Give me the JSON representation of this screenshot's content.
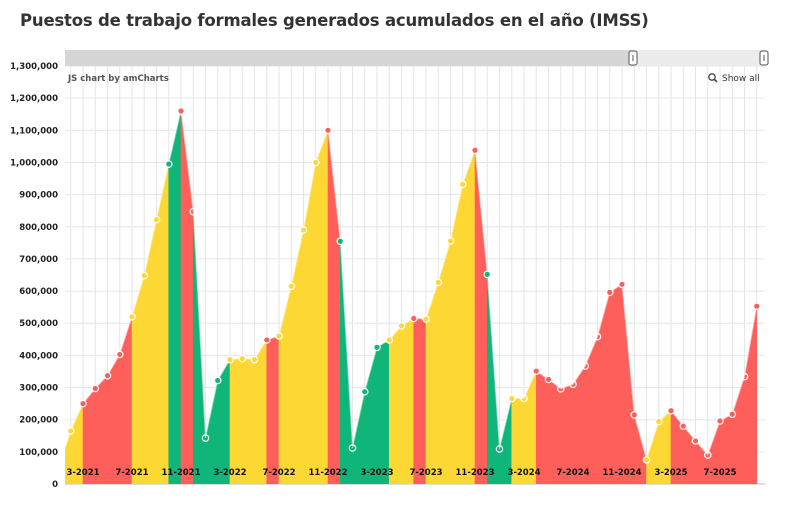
{
  "title": "Puestos de trabajo formales generados acumulados en el año (IMSS)",
  "credit": "JS chart by amCharts",
  "show_all_label": "Show all",
  "icons": {
    "show_all": "zoom-magnifier-icon",
    "scroll_grip": "grip-icon"
  },
  "colors": {
    "Y": "#fdd835",
    "R": "#fe5f5a",
    "G": "#10b57a",
    "grid": "#e6e6e6",
    "scrollbar": "#d6d6d6",
    "scrollbar_selected": "#ececec"
  },
  "chart_data": {
    "type": "area",
    "title": "Puestos de trabajo formales generados acumulados en el año (IMSS)",
    "xlabel": "",
    "ylabel": "",
    "ylim": [
      0,
      1300000
    ],
    "yticks": [
      "0",
      "100,000",
      "200,000",
      "300,000",
      "400,000",
      "500,000",
      "600,000",
      "700,000",
      "800,000",
      "900,000",
      "1,000,000",
      "1,100,000",
      "1,200,000",
      "1,300,000"
    ],
    "xticks": [
      "3-2021",
      "7-2021",
      "11-2021",
      "3-2022",
      "7-2022",
      "11-2022",
      "3-2023",
      "7-2023",
      "11-2023",
      "3-2024",
      "7-2024",
      "11-2024",
      "3-2025",
      "7-2025"
    ],
    "grid": true,
    "segment_color_note_keys": "Y=yellow, R=red, G=green",
    "points": [
      {
        "x": "1-2021",
        "y": 48000,
        "c": "Y"
      },
      {
        "x": "2-2021",
        "y": 165000,
        "c": "Y"
      },
      {
        "x": "3-2021",
        "y": 250000,
        "c": "R"
      },
      {
        "x": "4-2021",
        "y": 297000,
        "c": "R"
      },
      {
        "x": "5-2021",
        "y": 337000,
        "c": "R"
      },
      {
        "x": "6-2021",
        "y": 403000,
        "c": "R"
      },
      {
        "x": "7-2021",
        "y": 520000,
        "c": "Y"
      },
      {
        "x": "8-2021",
        "y": 648000,
        "c": "Y"
      },
      {
        "x": "9-2021",
        "y": 822000,
        "c": "Y"
      },
      {
        "x": "10-2021",
        "y": 995000,
        "c": "G"
      },
      {
        "x": "11-2021",
        "y": 1160000,
        "c": "R"
      },
      {
        "x": "12-2021",
        "y": 847000,
        "c": "G"
      },
      {
        "x": "1-2022",
        "y": 143000,
        "c": "G"
      },
      {
        "x": "2-2022",
        "y": 322000,
        "c": "G"
      },
      {
        "x": "3-2022",
        "y": 387000,
        "c": "Y"
      },
      {
        "x": "4-2022",
        "y": 390000,
        "c": "Y"
      },
      {
        "x": "5-2022",
        "y": 387000,
        "c": "Y"
      },
      {
        "x": "6-2022",
        "y": 448000,
        "c": "R"
      },
      {
        "x": "7-2022",
        "y": 460000,
        "c": "Y"
      },
      {
        "x": "8-2022",
        "y": 615000,
        "c": "Y"
      },
      {
        "x": "9-2022",
        "y": 790000,
        "c": "Y"
      },
      {
        "x": "10-2022",
        "y": 1000000,
        "c": "Y"
      },
      {
        "x": "11-2022",
        "y": 1100000,
        "c": "R"
      },
      {
        "x": "12-2022",
        "y": 755000,
        "c": "G"
      },
      {
        "x": "1-2023",
        "y": 112000,
        "c": "G"
      },
      {
        "x": "2-2023",
        "y": 287000,
        "c": "G"
      },
      {
        "x": "3-2023",
        "y": 425000,
        "c": "G"
      },
      {
        "x": "4-2023",
        "y": 448000,
        "c": "Y"
      },
      {
        "x": "5-2023",
        "y": 492000,
        "c": "Y"
      },
      {
        "x": "6-2023",
        "y": 515000,
        "c": "R"
      },
      {
        "x": "7-2023",
        "y": 513000,
        "c": "Y"
      },
      {
        "x": "8-2023",
        "y": 627000,
        "c": "Y"
      },
      {
        "x": "9-2023",
        "y": 756000,
        "c": "Y"
      },
      {
        "x": "10-2023",
        "y": 932000,
        "c": "Y"
      },
      {
        "x": "11-2023",
        "y": 1038000,
        "c": "R"
      },
      {
        "x": "12-2023",
        "y": 652000,
        "c": "G"
      },
      {
        "x": "1-2024",
        "y": 109000,
        "c": "G"
      },
      {
        "x": "2-2024",
        "y": 266000,
        "c": "Y"
      },
      {
        "x": "3-2024",
        "y": 266000,
        "c": "Y"
      },
      {
        "x": "4-2024",
        "y": 351000,
        "c": "R"
      },
      {
        "x": "5-2024",
        "y": 325000,
        "c": "R"
      },
      {
        "x": "6-2024",
        "y": 296000,
        "c": "R"
      },
      {
        "x": "7-2024",
        "y": 310000,
        "c": "R"
      },
      {
        "x": "8-2024",
        "y": 367000,
        "c": "R"
      },
      {
        "x": "9-2024",
        "y": 458000,
        "c": "R"
      },
      {
        "x": "10-2024",
        "y": 596000,
        "c": "R"
      },
      {
        "x": "11-2024",
        "y": 621000,
        "c": "R"
      },
      {
        "x": "12-2024",
        "y": 215000,
        "c": "R"
      },
      {
        "x": "1-2025",
        "y": 75000,
        "c": "Y"
      },
      {
        "x": "2-2025",
        "y": 194000,
        "c": "Y"
      },
      {
        "x": "3-2025",
        "y": 228000,
        "c": "R"
      },
      {
        "x": "4-2025",
        "y": 180000,
        "c": "R"
      },
      {
        "x": "5-2025",
        "y": 134000,
        "c": "R"
      },
      {
        "x": "6-2025",
        "y": 90000,
        "c": "R"
      },
      {
        "x": "7-2025",
        "y": 196000,
        "c": "R"
      },
      {
        "x": "8-2025",
        "y": 217000,
        "c": "R"
      },
      {
        "x": "9-2025",
        "y": 334000,
        "c": "R"
      },
      {
        "x": "10-2025",
        "y": 553000,
        "c": "R"
      }
    ]
  }
}
